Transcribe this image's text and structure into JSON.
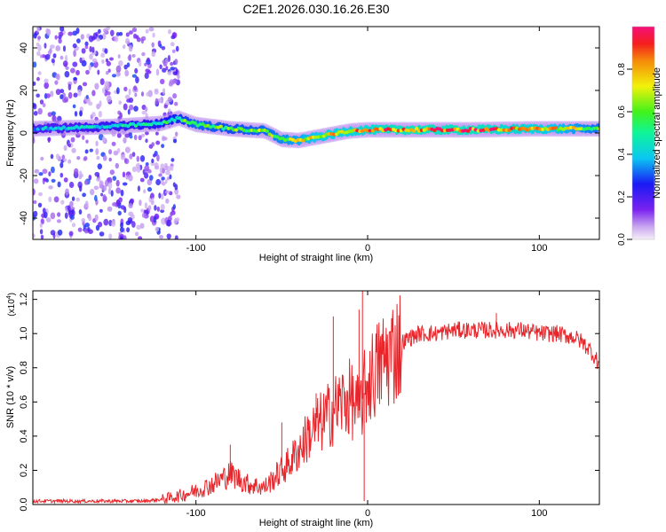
{
  "title": "C2E1.2026.030.16.26.E30",
  "chart_data": [
    {
      "type": "heatmap",
      "title": "C2E1.2026.030.16.26.E30",
      "xlabel": "Height of straight line (km)",
      "ylabel": "Frequency (Hz)",
      "xlim": [
        -195,
        135
      ],
      "ylim": [
        -50,
        50
      ],
      "xticks": [
        -100,
        0,
        100
      ],
      "yticks": [
        -40,
        -20,
        0,
        20,
        40
      ],
      "colorbar": {
        "label": "Normalized spectral amplitude",
        "range": [
          0,
          1
        ],
        "ticks": [
          0.0,
          0.2,
          0.4,
          0.6,
          0.8
        ]
      },
      "ridge": {
        "x": [
          -195,
          -150,
          -120,
          -110,
          -100,
          -80,
          -60,
          -50,
          -40,
          -30,
          -20,
          -10,
          0,
          20,
          60,
          100,
          135
        ],
        "freq_hz": [
          2.0,
          3.0,
          4.5,
          7.0,
          4.0,
          2.0,
          1.0,
          -3.0,
          -3.5,
          -2.0,
          -0.5,
          1.0,
          1.5,
          1.5,
          1.5,
          2.0,
          2.0
        ],
        "amplitude": [
          0.4,
          0.5,
          0.55,
          0.6,
          0.7,
          0.65,
          0.7,
          0.75,
          0.8,
          0.85,
          0.9,
          0.9,
          0.95,
          1.0,
          1.0,
          0.9,
          0.7
        ]
      },
      "noise_region_x": [
        -195,
        -110
      ]
    },
    {
      "type": "line",
      "xlabel": "Height of straight line (km)",
      "ylabel": "SNR (10 * v/v)",
      "y_multiplier": "(x10",
      "y_multiplier_exp": "4",
      "y_multiplier_close": ")",
      "xlim": [
        -195,
        135
      ],
      "ylim": [
        0,
        1.25
      ],
      "xticks": [
        -100,
        0,
        100
      ],
      "yticks": [
        0.0,
        0.2,
        0.4,
        0.6,
        0.8,
        1.0,
        1.2
      ],
      "ytick_labels": [
        "0.0",
        "0.2",
        "0.4",
        "0.6",
        "0.8",
        "1.0",
        "1.2"
      ],
      "color": "#e8252a",
      "x": [
        -195,
        -170,
        -150,
        -130,
        -120,
        -110,
        -100,
        -90,
        -80,
        -70,
        -60,
        -50,
        -45,
        -40,
        -35,
        -30,
        -25,
        -20,
        -15,
        -10,
        -5,
        0,
        10,
        20,
        30,
        40,
        50,
        60,
        70,
        80,
        90,
        100,
        110,
        120,
        125,
        130,
        135
      ],
      "y": [
        0.02,
        0.02,
        0.02,
        0.02,
        0.03,
        0.05,
        0.08,
        0.12,
        0.18,
        0.12,
        0.1,
        0.2,
        0.25,
        0.32,
        0.4,
        0.45,
        0.5,
        0.55,
        0.6,
        0.62,
        0.55,
        0.72,
        0.85,
        0.95,
        1.0,
        1.0,
        1.02,
        1.02,
        1.02,
        1.02,
        1.02,
        1.0,
        1.0,
        0.98,
        0.95,
        0.9,
        0.82
      ],
      "spikes": [
        {
          "x": -80,
          "y": 0.35
        },
        {
          "x": -50,
          "y": 0.48
        },
        {
          "x": -30,
          "y": 0.65
        },
        {
          "x": -20,
          "y": 1.1
        },
        {
          "x": -5,
          "y": 1.14
        },
        {
          "x": -3,
          "y": 1.25
        },
        {
          "x": -2,
          "y": 0.02
        },
        {
          "x": 10,
          "y": 0.88
        },
        {
          "x": 25,
          "y": 1.02
        },
        {
          "x": 75,
          "y": 1.12
        }
      ]
    }
  ]
}
